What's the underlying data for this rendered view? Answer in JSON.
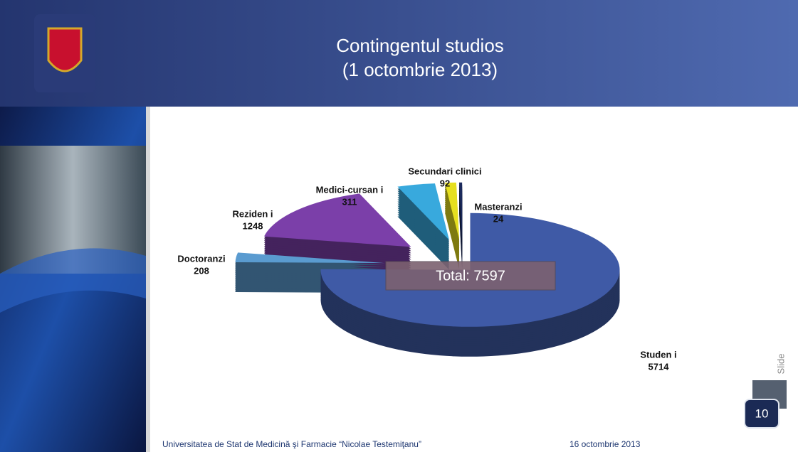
{
  "header": {
    "title": [
      "Contingentul studios",
      "(1 octombrie 2013)"
    ]
  },
  "chart_data": {
    "type": "pie",
    "categories": [
      "Studen i",
      "Doctoranzi",
      "Reziden i",
      "Medici-cursan i",
      "Secundari clinici",
      "Masteranzi"
    ],
    "values": [
      5714,
      208,
      1248,
      311,
      92,
      24
    ],
    "colors": [
      "#3f5aa6",
      "#5a9bd0",
      "#7b3fa9",
      "#38a9dd",
      "#e6df1f",
      "#1b2a5c"
    ],
    "annotation": "Total: 7597"
  },
  "footer": {
    "institution": "Universitatea de Stat de Medicină şi Farmacie “Nicolae Testemiţanu”",
    "date": "16 octombrie 2013",
    "slide_label": "Slide",
    "slide_number": "10"
  }
}
